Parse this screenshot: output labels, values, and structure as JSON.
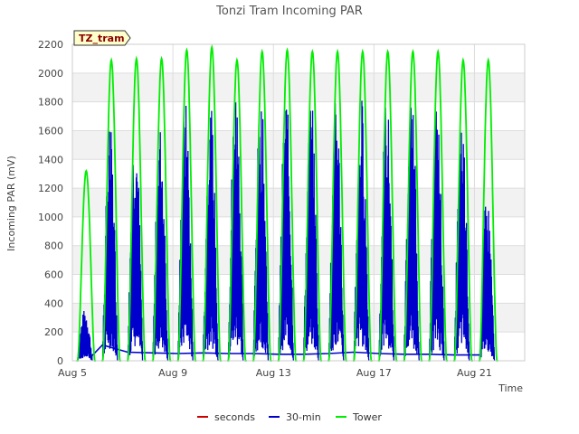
{
  "chart_data": {
    "type": "line",
    "title": "Tonzi Tram Incoming PAR",
    "tag": "TZ_tram",
    "xlabel": "Time",
    "ylabel": "Incoming PAR (mV)",
    "ylim": [
      0,
      2200
    ],
    "yticks": [
      "0",
      "200",
      "400",
      "600",
      "800",
      "1000",
      "1200",
      "1400",
      "1600",
      "1800",
      "2000",
      "2200"
    ],
    "x_start": "Aug 5",
    "x_end": "Aug 23",
    "xticks": [
      {
        "label": "Aug 5",
        "day": 5
      },
      {
        "label": "Aug 9",
        "day": 9
      },
      {
        "label": "Aug 13",
        "day": 13
      },
      {
        "label": "Aug 17",
        "day": 17
      },
      {
        "label": "Aug 21",
        "day": 21
      }
    ],
    "grid": true,
    "legend_position": "bottom-center",
    "colors": {
      "seconds": "#cc0000",
      "min30": "#0000cc",
      "tower": "#00ee00"
    },
    "series": [
      {
        "name": "seconds",
        "values": []
      },
      {
        "name": "30-min",
        "daily_peaks": [
          {
            "day": 5.5,
            "peak": 360
          },
          {
            "day": 6.5,
            "peak": 1630
          },
          {
            "day": 7.5,
            "peak": 1680
          },
          {
            "day": 8.5,
            "peak": 1650
          },
          {
            "day": 9.5,
            "peak": 1810
          },
          {
            "day": 10.5,
            "peak": 1780
          },
          {
            "day": 11.5,
            "peak": 1970
          },
          {
            "day": 12.5,
            "peak": 1840
          },
          {
            "day": 13.5,
            "peak": 1880
          },
          {
            "day": 14.5,
            "peak": 1840
          },
          {
            "day": 15.5,
            "peak": 1850
          },
          {
            "day": 16.5,
            "peak": 1860
          },
          {
            "day": 17.5,
            "peak": 1860
          },
          {
            "day": 18.5,
            "peak": 1850
          },
          {
            "day": 19.5,
            "peak": 1800
          },
          {
            "day": 20.5,
            "peak": 1750
          },
          {
            "day": 21.5,
            "peak": 1150
          }
        ],
        "night_baseline": [
          {
            "day": 5.7,
            "value": 20
          },
          {
            "day": 6.2,
            "value": 110
          },
          {
            "day": 7.2,
            "value": 60
          },
          {
            "day": 8.2,
            "value": 55
          },
          {
            "day": 9.2,
            "value": 50
          },
          {
            "day": 10.2,
            "value": 55
          },
          {
            "day": 11.2,
            "value": 50
          },
          {
            "day": 12.2,
            "value": 50
          },
          {
            "day": 13.2,
            "value": 45
          },
          {
            "day": 14.2,
            "value": 45
          },
          {
            "day": 15.2,
            "value": 50
          },
          {
            "day": 16.2,
            "value": 60
          },
          {
            "day": 17.2,
            "value": 50
          },
          {
            "day": 18.2,
            "value": 45
          },
          {
            "day": 19.2,
            "value": 45
          },
          {
            "day": 20.2,
            "value": 40
          },
          {
            "day": 21.2,
            "value": 40
          }
        ]
      },
      {
        "name": "Tower",
        "daily_peaks": [
          {
            "day": 5.55,
            "peak": 1320
          },
          {
            "day": 6.55,
            "peak": 2090
          },
          {
            "day": 7.55,
            "peak": 2100
          },
          {
            "day": 8.55,
            "peak": 2100
          },
          {
            "day": 9.55,
            "peak": 2160
          },
          {
            "day": 10.55,
            "peak": 2180
          },
          {
            "day": 11.55,
            "peak": 2090
          },
          {
            "day": 12.55,
            "peak": 2150
          },
          {
            "day": 13.55,
            "peak": 2160
          },
          {
            "day": 14.55,
            "peak": 2150
          },
          {
            "day": 15.55,
            "peak": 2150
          },
          {
            "day": 16.55,
            "peak": 2150
          },
          {
            "day": 17.55,
            "peak": 2150
          },
          {
            "day": 18.55,
            "peak": 2150
          },
          {
            "day": 19.55,
            "peak": 2150
          },
          {
            "day": 20.55,
            "peak": 2090
          },
          {
            "day": 21.55,
            "peak": 2090
          }
        ]
      }
    ]
  }
}
